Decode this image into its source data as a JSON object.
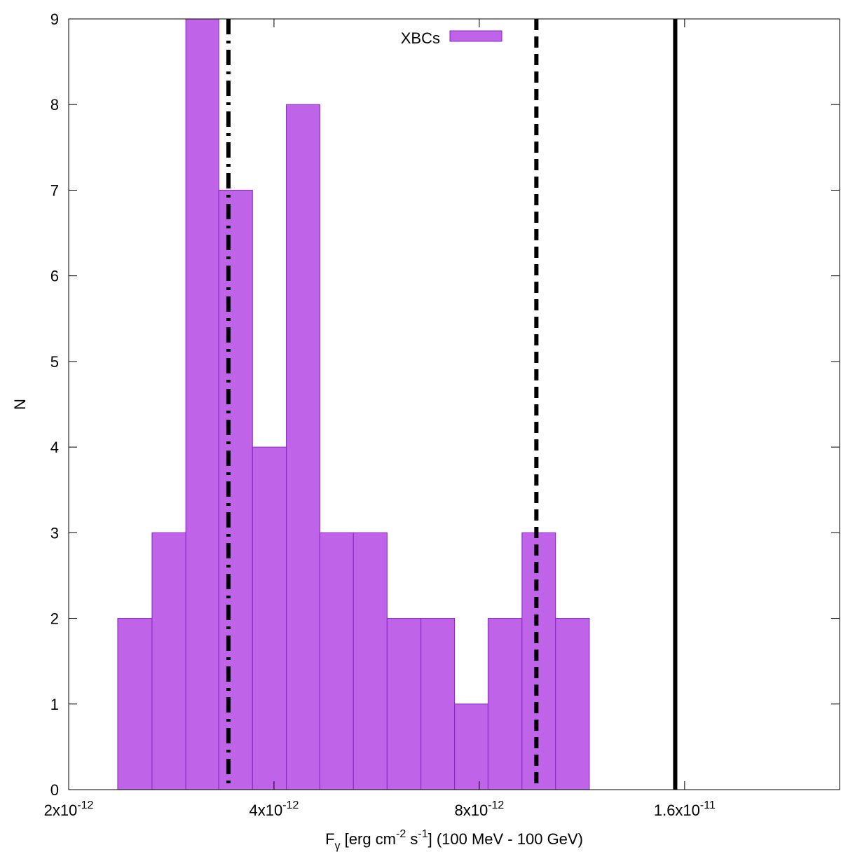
{
  "chart_data": {
    "type": "bar",
    "title": "",
    "xlabel": {
      "main": "F",
      "sub": "γ",
      "pre_unit": " [erg cm",
      "exp1": "-2",
      "mid": " s",
      "exp2": "-1",
      "post": "] (100 MeV - 100 GeV)"
    },
    "ylabel": "N",
    "x_scale": "log",
    "xlim": [
      2e-12,
      2.7e-11
    ],
    "ylim": [
      0,
      9
    ],
    "x_ticks": [
      {
        "value": 2e-12,
        "mantissa": "2x10",
        "exp": "-12"
      },
      {
        "value": 4e-12,
        "mantissa": "4x10",
        "exp": "-12"
      },
      {
        "value": 8e-12,
        "mantissa": "8x10",
        "exp": "-12"
      },
      {
        "value": 1.6e-11,
        "mantissa": "1.6x10",
        "exp": "-11"
      }
    ],
    "y_ticks": [
      "0",
      "1",
      "2",
      "3",
      "4",
      "5",
      "6",
      "7",
      "8",
      "9"
    ],
    "legend": {
      "position": "top-center",
      "label": "XBCs"
    },
    "bar_color": "#bf63e8",
    "bar_edge_color": "#8a25c4",
    "series": [
      {
        "name": "XBCs",
        "bins": [
          {
            "low": 2.36e-12,
            "high": 2.65e-12,
            "count": 2
          },
          {
            "low": 2.65e-12,
            "high": 2.97e-12,
            "count": 3
          },
          {
            "low": 2.97e-12,
            "high": 3.32e-12,
            "count": 9
          },
          {
            "low": 3.32e-12,
            "high": 3.72e-12,
            "count": 7
          },
          {
            "low": 3.72e-12,
            "high": 4.17e-12,
            "count": 4
          },
          {
            "low": 4.17e-12,
            "high": 4.67e-12,
            "count": 8
          },
          {
            "low": 4.67e-12,
            "high": 5.23e-12,
            "count": 3
          },
          {
            "low": 5.23e-12,
            "high": 5.86e-12,
            "count": 3
          },
          {
            "low": 5.86e-12,
            "high": 6.57e-12,
            "count": 2
          },
          {
            "low": 6.57e-12,
            "high": 7.36e-12,
            "count": 2
          },
          {
            "low": 7.36e-12,
            "high": 8.24e-12,
            "count": 1
          },
          {
            "low": 8.24e-12,
            "high": 9.24e-12,
            "count": 2
          },
          {
            "low": 9.24e-12,
            "high": 1.035e-11,
            "count": 3
          },
          {
            "low": 1.035e-11,
            "high": 1.16e-11,
            "count": 2
          }
        ]
      }
    ],
    "reference_lines": [
      {
        "name": "dash-dot",
        "x": 3.43e-12,
        "style": "dashdot"
      },
      {
        "name": "dashed",
        "x": 9.7e-12,
        "style": "dashed"
      },
      {
        "name": "solid",
        "x": 1.55e-11,
        "style": "solid"
      }
    ]
  }
}
